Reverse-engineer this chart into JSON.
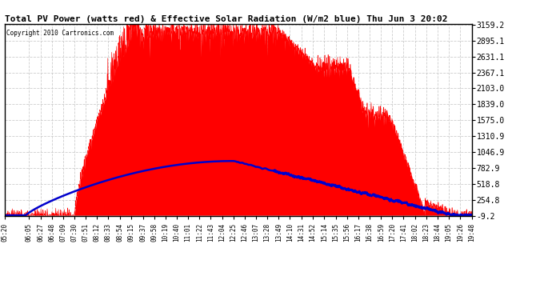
{
  "title": "Total PV Power (watts red) & Effective Solar Radiation (W/m2 blue) Thu Jun 3 20:02",
  "copyright": "Copyright 2010 Cartronics.com",
  "background_color": "#ffffff",
  "plot_bg_color": "#ffffff",
  "grid_color": "#c8c8c8",
  "yticks": [
    3159.2,
    2895.1,
    2631.1,
    2367.1,
    2103.0,
    1839.0,
    1575.0,
    1310.9,
    1046.9,
    782.9,
    518.8,
    254.8,
    -9.2
  ],
  "ymin": -9.2,
  "ymax": 3159.2,
  "fill_color": "#ff0000",
  "line_color": "#0000cc",
  "xtick_labels": [
    "05:20",
    "06:05",
    "06:27",
    "06:48",
    "07:09",
    "07:30",
    "07:51",
    "08:12",
    "08:33",
    "08:54",
    "09:15",
    "09:37",
    "09:58",
    "10:19",
    "10:40",
    "11:01",
    "11:22",
    "11:43",
    "12:04",
    "12:25",
    "12:46",
    "13:07",
    "13:28",
    "13:49",
    "14:10",
    "14:31",
    "14:52",
    "15:14",
    "15:35",
    "15:56",
    "16:17",
    "16:38",
    "16:59",
    "17:20",
    "17:41",
    "18:02",
    "18:23",
    "18:44",
    "19:05",
    "19:26",
    "19:48"
  ]
}
